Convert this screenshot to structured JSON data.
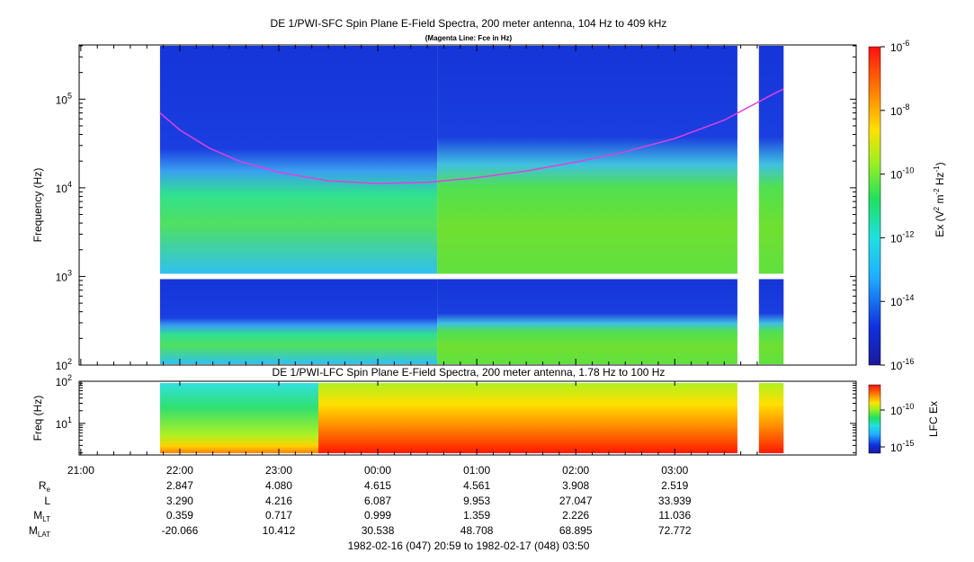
{
  "colors": {
    "background": "#ffffff",
    "axis": "#000000",
    "fce_line": "#e040e0",
    "spectrogram_low": "#1020c0",
    "spectrogram_high": "#ff2000"
  },
  "chart_data": [
    {
      "type": "heatmap",
      "title": "DE 1/PWI-SFC  Spin Plane E-Field Spectra, 200 meter antenna, 104 Hz to 409 kHz",
      "subtitle": "(Magenta Line: Fce in Hz)",
      "ylabel": "Frequency (Hz)",
      "y_scale": "log",
      "ylim": [
        100,
        409000
      ],
      "y_ticks": [
        {
          "value": 100,
          "base": "10",
          "exp": "2"
        },
        {
          "value": 1000,
          "base": "10",
          "exp": "3"
        },
        {
          "value": 10000,
          "base": "10",
          "exp": "4"
        },
        {
          "value": 100000,
          "base": "10",
          "exp": "5"
        }
      ],
      "xlim_hours": [
        20.983,
        28.833
      ],
      "data_hours": [
        21.8,
        28.1
      ],
      "data_gaps_hours": [
        [
          27.633,
          27.85
        ]
      ],
      "gap_frequency_hz": 1000,
      "colorbar": {
        "label_prefix": "Ex (V",
        "label_sup1": "2",
        "label_mid": " m",
        "label_sup2": "-2",
        "label_mid2": " Hz",
        "label_sup3": "-1",
        "label_suffix": ")",
        "scale": "log",
        "range": [
          1e-16,
          1e-06
        ],
        "ticks": [
          {
            "base": "10",
            "exp": "-6"
          },
          {
            "base": "10",
            "exp": "-8"
          },
          {
            "base": "10",
            "exp": "-10"
          },
          {
            "base": "10",
            "exp": "-12"
          },
          {
            "base": "10",
            "exp": "-14"
          },
          {
            "base": "10",
            "exp": "-16"
          }
        ]
      },
      "fce_line": {
        "x_hours": [
          21.8,
          22.0,
          22.3,
          22.6,
          23.0,
          23.5,
          24.0,
          24.5,
          25.0,
          25.5,
          26.0,
          26.5,
          27.0,
          27.5,
          28.0,
          28.1
        ],
        "y_hz": [
          70000,
          45000,
          28000,
          20000,
          15000,
          12000,
          11200,
          11500,
          13000,
          15500,
          19500,
          25500,
          36000,
          58000,
          115000,
          130000
        ]
      }
    },
    {
      "type": "heatmap",
      "title": "DE 1/PWI-LFC  Spin Plane E-Field Spectra, 200 meter antenna, 1.78 Hz to 100 Hz",
      "ylabel": "Freq (Hz)",
      "y_scale": "log",
      "ylim": [
        1.78,
        100
      ],
      "y_ticks": [
        {
          "value": 10,
          "base": "10",
          "exp": "1"
        },
        {
          "value": 100,
          "base": "10",
          "exp": "2"
        }
      ],
      "colorbar": {
        "label": "LFC Ex",
        "ticks": [
          {
            "base": "10",
            "exp": "-10"
          },
          {
            "base": "10",
            "exp": "-15"
          }
        ]
      }
    }
  ],
  "x_axis": {
    "ticks": [
      "21:00",
      "22:00",
      "23:00",
      "00:00",
      "01:00",
      "02:00",
      "03:00"
    ],
    "tick_hours": [
      21,
      22,
      23,
      24,
      25,
      26,
      27
    ]
  },
  "ephemeris": {
    "rows": [
      {
        "label": "R",
        "sub": "e",
        "values": [
          "2.847",
          "4.080",
          "4.615",
          "4.561",
          "3.908",
          "2.519"
        ]
      },
      {
        "label": "L",
        "sub": "",
        "values": [
          "3.290",
          "4.216",
          "6.087",
          "9.953",
          "27.047",
          "33.939"
        ]
      },
      {
        "label": "M",
        "sub": "LT",
        "values": [
          "0.359",
          "0.717",
          "0.999",
          "1.359",
          "2.226",
          "11.036"
        ]
      },
      {
        "label": "M",
        "sub": "LAT",
        "values": [
          "-20.066",
          "10.412",
          "30.538",
          "48.708",
          "68.895",
          "72.772"
        ]
      }
    ]
  },
  "time_range": "1982-02-16 (047) 20:59 to 1982-02-17 (048) 03:50"
}
